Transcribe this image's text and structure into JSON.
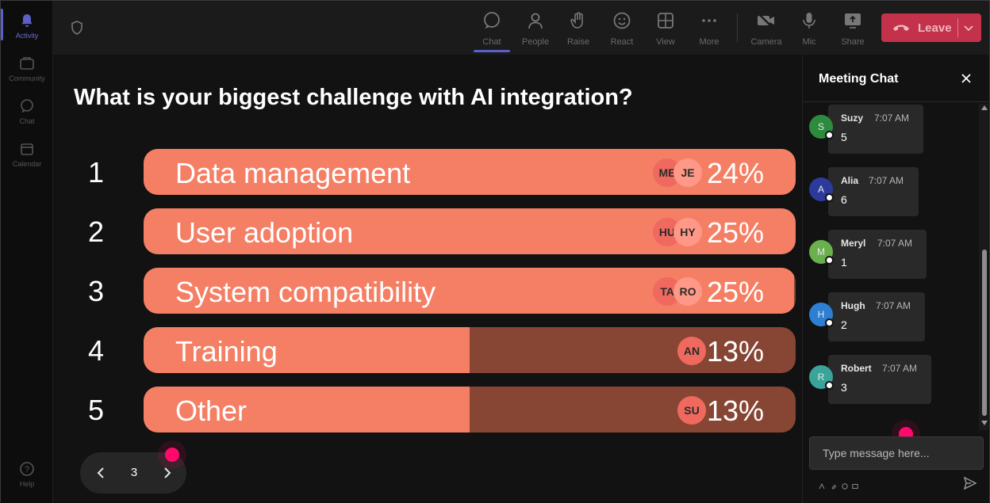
{
  "rail": {
    "items": [
      {
        "label": "Activity",
        "icon": "bell-icon"
      },
      {
        "label": "Community",
        "icon": "community-icon"
      },
      {
        "label": "Chat",
        "icon": "chat-icon"
      },
      {
        "label": "Calendar",
        "icon": "calendar-icon"
      },
      {
        "label": "Help",
        "icon": "help-icon"
      }
    ]
  },
  "toolbar": {
    "chat": "Chat",
    "people": "People",
    "raise": "Raise",
    "react": "React",
    "view": "View",
    "more": "More",
    "camera": "Camera",
    "mic": "Mic",
    "share": "Share",
    "leave": "Leave"
  },
  "poll": {
    "question": "What is your biggest challenge with AI integration?",
    "options": [
      {
        "num": "1",
        "label": "Data management",
        "percent_label": "24%",
        "percent": 24,
        "fill": 1.0,
        "voters": [
          "ME",
          "JE"
        ]
      },
      {
        "num": "2",
        "label": "User adoption",
        "percent_label": "25%",
        "percent": 25,
        "fill": 1.0,
        "voters": [
          "HU",
          "HY"
        ]
      },
      {
        "num": "3",
        "label": "System compatibility",
        "percent_label": "25%",
        "percent": 25,
        "fill": 0.998,
        "voters": [
          "TA",
          "RO"
        ]
      },
      {
        "num": "4",
        "label": "Training",
        "percent_label": "13%",
        "percent": 13,
        "fill": 0.5,
        "voters": [
          "AN"
        ]
      },
      {
        "num": "5",
        "label": "Other",
        "percent_label": "13%",
        "percent": 13,
        "fill": 0.5,
        "voters": [
          "SU"
        ]
      }
    ],
    "page": "3"
  },
  "chat": {
    "title": "Meeting Chat",
    "messages": [
      {
        "initial": "S",
        "name": "Suzy",
        "time": "7:07 AM",
        "text": "5",
        "color": "#2e8b3d"
      },
      {
        "initial": "A",
        "name": "Alia",
        "time": "7:07 AM",
        "text": "6",
        "color": "#2b3a9b"
      },
      {
        "initial": "M",
        "name": "Meryl",
        "time": "7:07 AM",
        "text": "1",
        "color": "#6ab04c"
      },
      {
        "initial": "H",
        "name": "Hugh",
        "time": "7:07 AM",
        "text": "2",
        "color": "#2d7fd4"
      },
      {
        "initial": "R",
        "name": "Robert",
        "time": "7:07 AM",
        "text": "3",
        "color": "#3aa39a"
      }
    ],
    "input_placeholder": "Type message here..."
  },
  "colors": {
    "bar_fill": "#f47f65",
    "bar_track": "#874534",
    "leave_red": "#c4314b",
    "accent": "#5b5fc7",
    "cursor": "#ff0a6c"
  }
}
